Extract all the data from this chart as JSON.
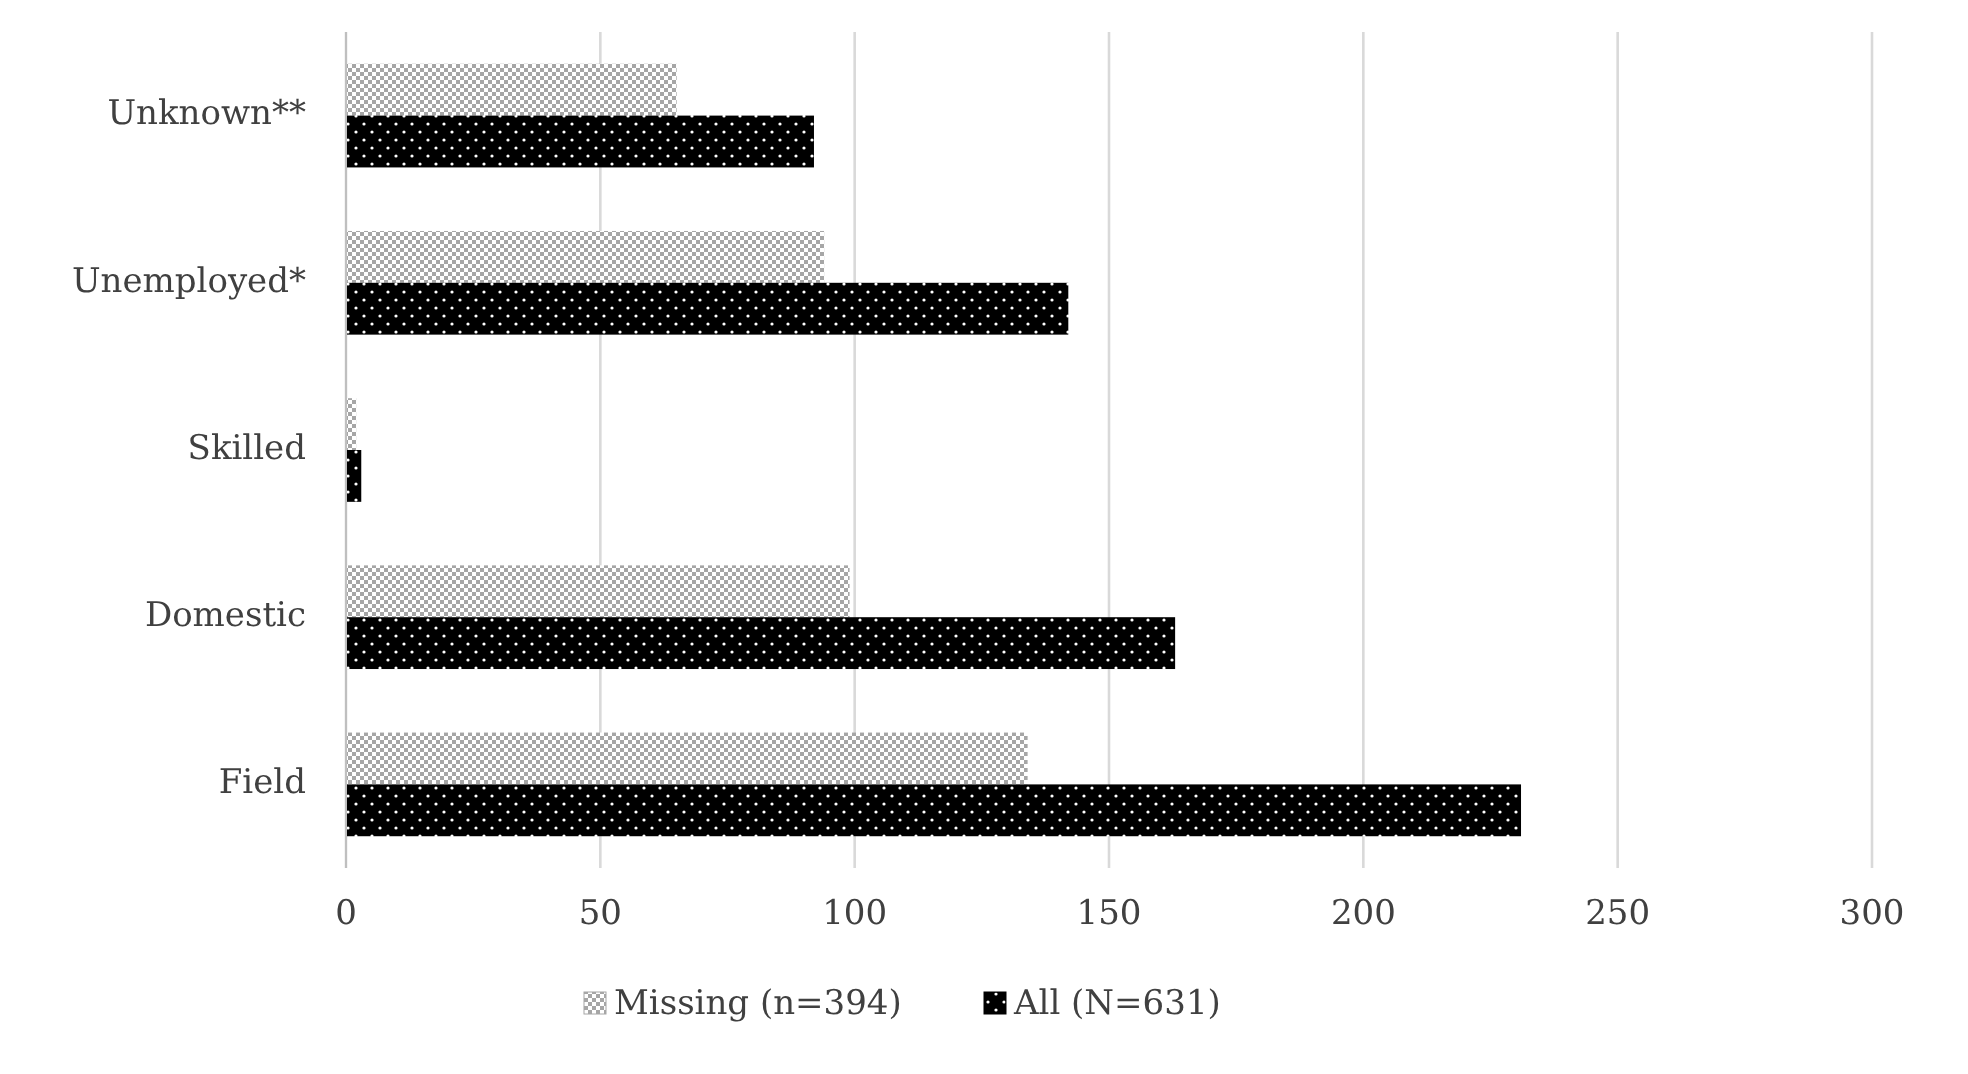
{
  "chart_data": {
    "type": "bar",
    "orientation": "horizontal",
    "categories": [
      "Unknown**",
      "Unemployed*",
      "Skilled",
      "Domestic",
      "Field"
    ],
    "series": [
      {
        "name": "Missing (n=394)",
        "color": "#a6a6a6",
        "values": [
          65,
          94,
          2,
          99,
          134
        ]
      },
      {
        "name": "All (N=631)",
        "color": "#000000",
        "values": [
          92,
          142,
          3,
          163,
          231
        ]
      }
    ],
    "xlim": [
      0,
      300
    ],
    "xticks": [
      0,
      50,
      100,
      150,
      200,
      250,
      300
    ],
    "grid": "x",
    "legend": "bottom"
  }
}
